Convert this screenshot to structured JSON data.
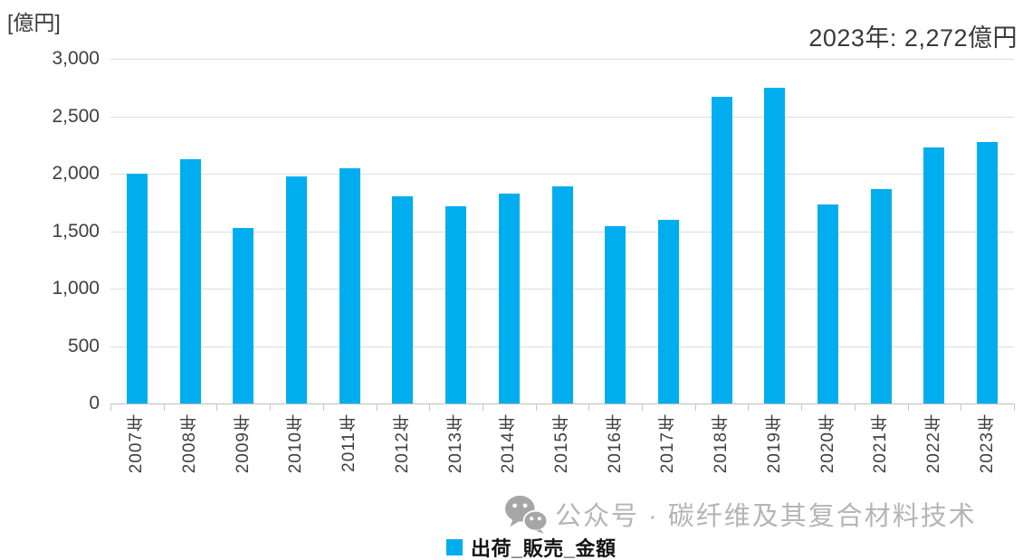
{
  "header": {
    "unit_label": "[億円]",
    "annotation": "2023年: 2,272億円"
  },
  "legend": {
    "label": "出荷_販売_金額"
  },
  "watermark": {
    "icon": "wechat-logo",
    "text": "公众号 · 碳纤维及其复合材料技术"
  },
  "chart_data": {
    "type": "bar",
    "title": "2023年: 2,272億円",
    "ylabel": "[億円]",
    "xlabel": "",
    "categories": [
      "2007年",
      "2008年",
      "2009年",
      "2010年",
      "2011年",
      "2012年",
      "2013年",
      "2014年",
      "2015年",
      "2016年",
      "2017年",
      "2018年",
      "2019年",
      "2020年",
      "2021年",
      "2022年",
      "2023年"
    ],
    "series": [
      {
        "name": "出荷_販売_金額",
        "values": [
          2000,
          2125,
          1525,
          1975,
          2045,
          1800,
          1715,
          1825,
          1890,
          1540,
          1595,
          2670,
          2750,
          1735,
          1865,
          2225,
          2272
        ]
      }
    ],
    "ylim": [
      0,
      3000
    ],
    "yticks": [
      0,
      500,
      1000,
      1500,
      2000,
      2500,
      3000
    ],
    "ytick_labels": [
      "0",
      "500",
      "1,000",
      "1,500",
      "2,000",
      "2,500",
      "3,000"
    ],
    "bar_color": "#00AEEF",
    "grid": true,
    "legend_position": "bottom-center",
    "x_label_rotation": 90
  }
}
